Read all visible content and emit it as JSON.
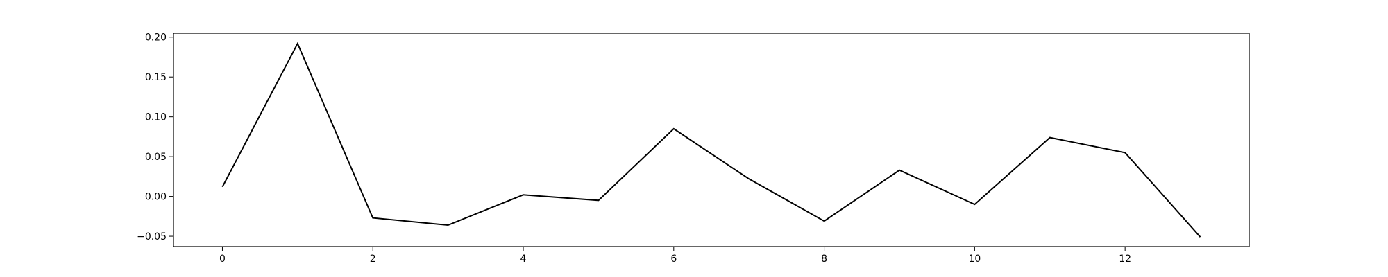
{
  "chart_data": {
    "type": "line",
    "title": "",
    "xlabel": "",
    "ylabel": "",
    "xlim": [
      -0.65,
      13.65
    ],
    "ylim": [
      -0.063,
      0.205
    ],
    "grid": false,
    "x_ticks": [
      0,
      2,
      4,
      6,
      8,
      10,
      12
    ],
    "x_tick_labels": [
      "0",
      "2",
      "4",
      "6",
      "8",
      "10",
      "12"
    ],
    "y_ticks": [
      -0.05,
      0.0,
      0.05,
      0.1,
      0.15,
      0.2
    ],
    "y_tick_labels": [
      "−0.05",
      "0.00",
      "0.05",
      "0.10",
      "0.15",
      "0.20"
    ],
    "series": [
      {
        "color": "#000000",
        "x": [
          0,
          1,
          2,
          3,
          4,
          5,
          6,
          7,
          8,
          9,
          10,
          11,
          12,
          13
        ],
        "values": [
          0.012,
          0.192,
          -0.027,
          -0.036,
          0.002,
          -0.005,
          0.085,
          0.022,
          -0.031,
          0.033,
          -0.01,
          0.074,
          0.055,
          -0.051
        ]
      }
    ]
  }
}
